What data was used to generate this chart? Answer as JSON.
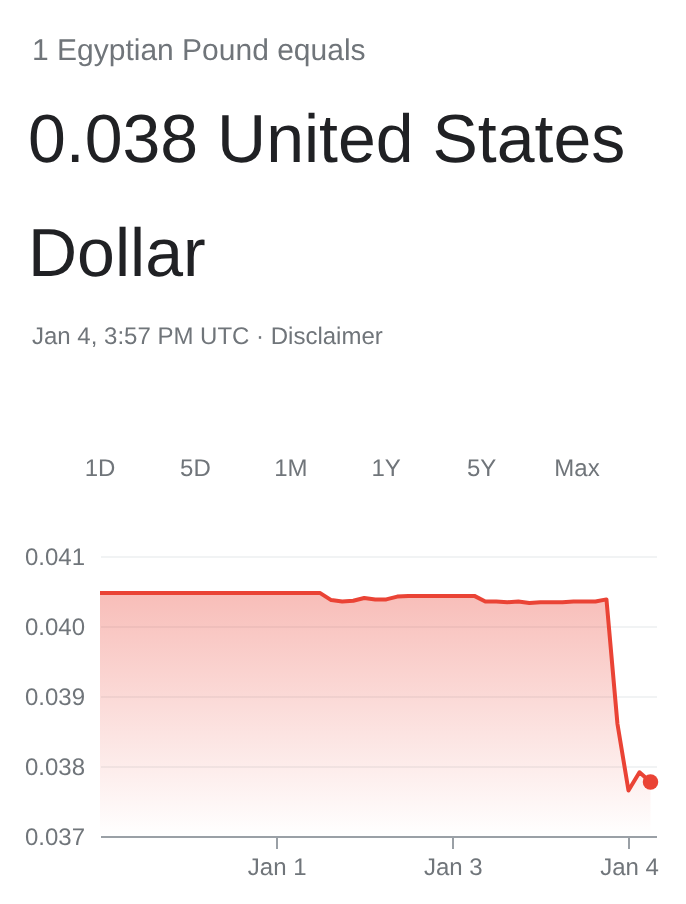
{
  "chart_data": {
    "type": "area",
    "subtitle": "1 Egyptian Pound equals",
    "title": "0.038 United States Dollar",
    "annotations": [
      "Jan 4, 3:57 PM UTC · Disclaimer",
      "1D",
      "5D",
      "1M",
      "1Y",
      "5Y",
      "Max"
    ],
    "categories": [
      null,
      null,
      null,
      null,
      null,
      null,
      null,
      null,
      null,
      null,
      null,
      null,
      null,
      null,
      null,
      null,
      "Jan 1",
      null,
      null,
      null,
      null,
      null,
      null,
      null,
      null,
      null,
      null,
      null,
      null,
      null,
      null,
      null,
      "Jan 3",
      null,
      null,
      null,
      null,
      null,
      null,
      null,
      null,
      null,
      null,
      null,
      null,
      null,
      null,
      null,
      "Jan 4",
      null,
      null
    ],
    "series": [
      {
        "color": "#ea4335",
        "values": [
          0.04047,
          0.04047,
          0.04047,
          0.04047,
          0.04047,
          0.04047,
          0.04047,
          0.04047,
          0.04047,
          0.04047,
          0.04047,
          0.04047,
          0.04047,
          0.04047,
          0.04047,
          0.04047,
          0.04047,
          0.04047,
          0.04047,
          0.04047,
          0.04047,
          0.04037,
          0.04035,
          0.04036,
          0.0404,
          0.04038,
          0.04038,
          0.04042,
          0.04043,
          0.04043,
          0.04043,
          0.04043,
          0.04043,
          0.04043,
          0.04043,
          0.04035,
          0.04035,
          0.04034,
          0.04035,
          0.04033,
          0.04034,
          0.04034,
          0.04034,
          0.04035,
          0.04035,
          0.04035,
          0.04038,
          0.0386,
          0.03765,
          0.03791,
          0.03777
        ]
      },
      {
        "type": "scatter",
        "color": "#ea4335",
        "marker": "circle",
        "values": [
          null,
          null,
          null,
          null,
          null,
          null,
          null,
          null,
          null,
          null,
          null,
          null,
          null,
          null,
          null,
          null,
          null,
          null,
          null,
          null,
          null,
          null,
          null,
          null,
          null,
          null,
          null,
          null,
          null,
          null,
          null,
          null,
          null,
          null,
          null,
          null,
          null,
          null,
          null,
          null,
          null,
          null,
          null,
          null,
          null,
          null,
          null,
          null,
          null,
          null,
          0.03777
        ]
      }
    ],
    "ylim": [
      0.037,
      0.041
    ],
    "yticks": [
      {
        "value": 0.037,
        "label": "0.037"
      },
      {
        "value": 0.038,
        "label": "0.038"
      },
      {
        "value": 0.039,
        "label": "0.039"
      },
      {
        "value": 0.04,
        "label": "0.040"
      },
      {
        "value": 0.041,
        "label": "0.041"
      }
    ],
    "grid": "y"
  }
}
